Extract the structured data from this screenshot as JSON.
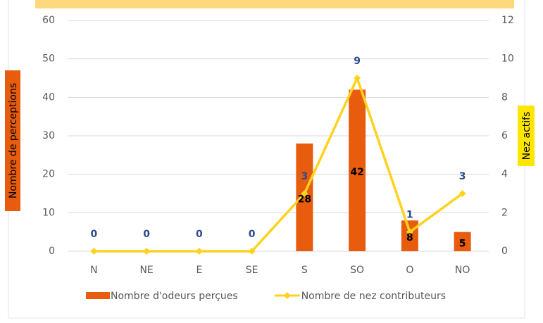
{
  "chart_data": {
    "type": "bar_line",
    "categories": [
      "N",
      "NE",
      "E",
      "SE",
      "S",
      "SO",
      "O",
      "NO"
    ],
    "series": [
      {
        "name": "Nombre d'odeurs perçues",
        "color": "#e85c0d",
        "values": [
          0,
          0,
          0,
          0,
          28,
          42,
          8,
          5
        ]
      },
      {
        "name": "Nombre de nez contributeurs",
        "color": "#ffd21f",
        "axis": "y2",
        "values": [
          0,
          0,
          0,
          0,
          3,
          9,
          1,
          3
        ]
      }
    ],
    "ylabel": "Nombre de perceptions",
    "y2label": "Nez actifs",
    "ylim": [
      0,
      60
    ],
    "yticks": [
      0,
      10,
      20,
      30,
      40,
      50,
      60
    ],
    "y2lim": [
      0,
      12
    ],
    "y2ticks": [
      0,
      2,
      4,
      6,
      8,
      10,
      12
    ],
    "grid": true,
    "legend": "bottom"
  }
}
